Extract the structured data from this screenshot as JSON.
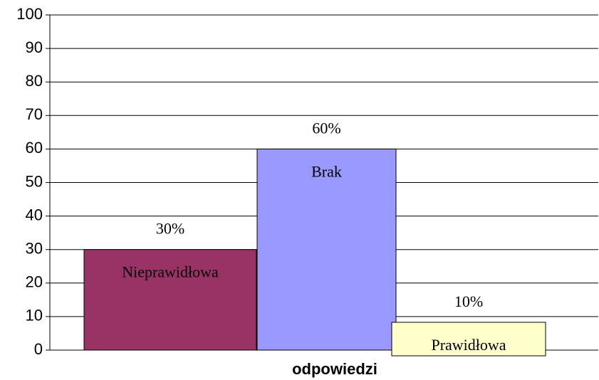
{
  "chart_data": {
    "type": "bar",
    "x_label": "odpowiedzi",
    "categories": [
      "Nieprawidłowa",
      "Brak",
      "Prawidłowa"
    ],
    "values": [
      30,
      60,
      10
    ],
    "value_labels": [
      "30%",
      "60%",
      "10%"
    ],
    "colors": [
      "#993366",
      "#9999ff",
      "#ffffcc"
    ],
    "ylim": [
      0,
      100
    ],
    "yticks": [
      0,
      10,
      20,
      30,
      40,
      50,
      60,
      70,
      80,
      90,
      100
    ],
    "grid": true
  }
}
